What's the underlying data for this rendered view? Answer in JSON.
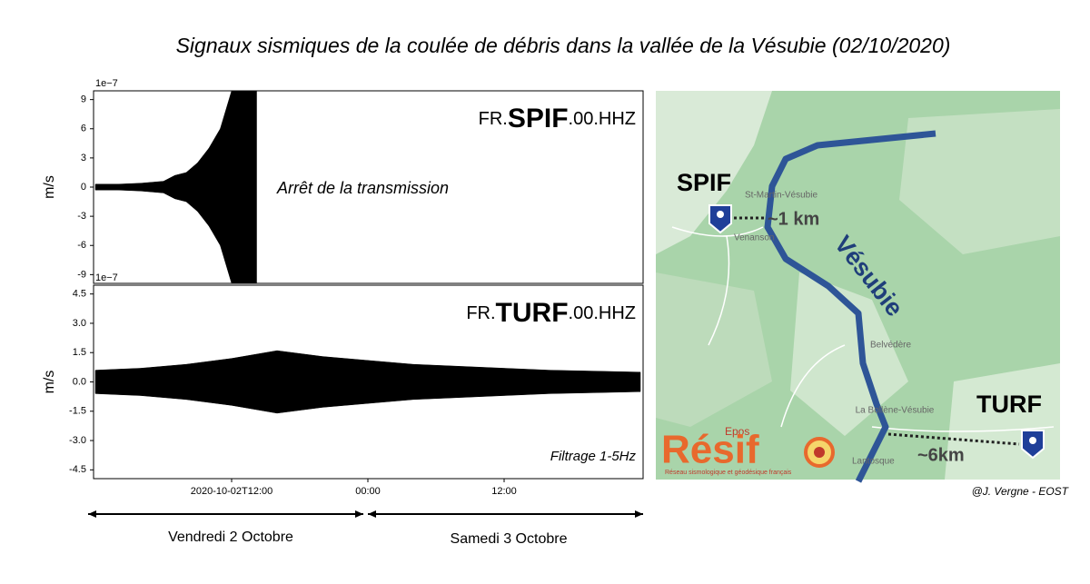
{
  "title": "Signaux sismiques de la coulée de débris dans la vallée de la Vésubie (02/10/2020)",
  "chart_data": [
    {
      "type": "area",
      "station": [
        "FR.",
        "SPIF",
        ".00.HHZ"
      ],
      "ylabel": "m/s",
      "offset_label": "1e−7",
      "annotation": "Arrêt de la transmission",
      "color": "#000000",
      "x": [
        0,
        2,
        4,
        6,
        7,
        8,
        9,
        10,
        11,
        12,
        13,
        14,
        14.2
      ],
      "values": [
        0.3,
        0.3,
        0.4,
        0.6,
        1.2,
        1.5,
        2.5,
        4,
        6,
        9.9,
        9.9,
        9.9,
        9.9
      ],
      "xlim": [
        -0.16,
        48.24
      ],
      "ylim": [
        -9.9,
        9.9
      ],
      "yticks": [
        -9,
        -6,
        -3,
        0,
        3,
        6,
        9
      ]
    },
    {
      "type": "area",
      "station": [
        "FR.",
        "TURF",
        ".00.HHZ"
      ],
      "ylabel": "m/s",
      "offset_label": "1e−7",
      "annotation": "Filtrage 1-5Hz",
      "color": "#000000",
      "x": [
        0,
        4,
        8,
        12,
        16,
        20,
        24,
        28,
        32,
        36,
        40,
        44,
        48
      ],
      "values": [
        0.6,
        0.7,
        0.9,
        1.2,
        1.6,
        1.3,
        1.1,
        0.9,
        0.8,
        0.7,
        0.6,
        0.55,
        0.5
      ],
      "xlim": [
        -0.16,
        48.24
      ],
      "ylim": [
        -4.95,
        4.95
      ],
      "yticks": [
        -4.5,
        {
          "value": -3,
          "label": "-3.0"
        },
        -1.5,
        {
          "value": 0,
          "label": "0.0"
        },
        1.5,
        {
          "value": 3,
          "label": "3.0"
        },
        4.5
      ],
      "xticks": [
        {
          "value": 12,
          "label": "2020-10-02T12:00"
        },
        {
          "value": 24,
          "label": "00:00"
        },
        {
          "value": 36,
          "label": "12:00"
        }
      ]
    }
  ],
  "day_labels": [
    "Vendredi 2 Octobre",
    "Samedi 3 Octobre"
  ],
  "map": {
    "river": "Vésubie",
    "stations": [
      "SPIF",
      "TURF"
    ],
    "distances": [
      "~1 km",
      "~6km"
    ],
    "places": [
      "St-Martin-Vésubie",
      "Venanson",
      "Belvédère",
      "La Bollène-Vésubie",
      "Lantosque"
    ],
    "logo": "Résif",
    "logo_top": "Epos",
    "logo_tagline": "Réseau sismologique et géodésique français"
  },
  "credit": "@J. Vergne - EOST"
}
